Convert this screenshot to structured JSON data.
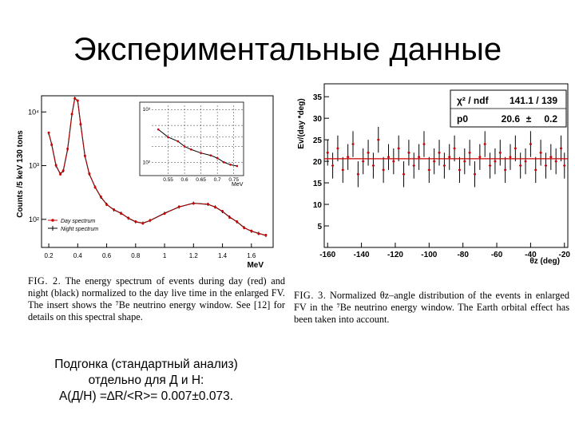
{
  "slide": {
    "title": "Экспериментальные данные",
    "summary_lines": [
      "Подгонка (стандартный анализ)",
      "отдельно для Д и Н:",
      "A(Д/Н) =∆R/<R>= 0.007±0.073."
    ]
  },
  "captions": {
    "fig2": {
      "label": "FIG. 2.",
      "text": "The energy spectrum of events during day (red) and night (black) normalized to the day live time in the enlarged FV. The insert shows the ⁷Be neutrino energy window. See [12] for details on this spectral shape."
    },
    "fig3": {
      "label": "FIG. 3.",
      "text": "Normalized θz–angle distribution of the events in enlarged FV in the ⁷Be neutrino energy window. The Earth orbital effect has been taken into account."
    }
  },
  "chart_data": [
    {
      "type": "line",
      "ylabel": "Counts /5 keV 130 tons",
      "xlabel": "MeV",
      "yscale": "log",
      "ylim": [
        30,
        20000
      ],
      "xlim": [
        0.15,
        1.75
      ],
      "x_ticks": [
        "0.2",
        "0.4",
        "0.6",
        "0.8",
        "1",
        "1.2",
        "1.4",
        "1.6"
      ],
      "y_ticks": [
        "10²",
        "10³",
        "10⁴"
      ],
      "legend": [
        "Day spectrum",
        "Night spectrum"
      ],
      "legend_position": "bottom-left",
      "series": [
        {
          "name": "Night spectrum",
          "color": "#000000",
          "x": [
            0.2,
            0.22,
            0.25,
            0.28,
            0.3,
            0.33,
            0.36,
            0.38,
            0.4,
            0.42,
            0.45,
            0.48,
            0.52,
            0.56,
            0.6,
            0.65,
            0.7,
            0.75,
            0.8,
            0.85,
            0.9,
            1.0,
            1.1,
            1.2,
            1.3,
            1.35,
            1.4,
            1.45,
            1.5,
            1.55,
            1.6,
            1.65,
            1.7
          ],
          "y": [
            4000,
            2500,
            1000,
            700,
            800,
            2000,
            9000,
            18000,
            16000,
            6000,
            1500,
            700,
            400,
            260,
            190,
            150,
            130,
            105,
            90,
            85,
            95,
            130,
            170,
            200,
            190,
            170,
            140,
            110,
            90,
            70,
            60,
            55,
            50
          ]
        },
        {
          "name": "Day spectrum",
          "color": "#cc0000",
          "x": [
            0.2,
            0.22,
            0.25,
            0.28,
            0.3,
            0.33,
            0.36,
            0.38,
            0.4,
            0.42,
            0.45,
            0.48,
            0.52,
            0.56,
            0.6,
            0.65,
            0.7,
            0.75,
            0.8,
            0.85,
            0.9,
            1.0,
            1.1,
            1.2,
            1.3,
            1.35,
            1.4,
            1.45,
            1.5,
            1.55,
            1.6,
            1.65,
            1.7
          ],
          "y": [
            4100,
            2450,
            1020,
            690,
            810,
            2050,
            9100,
            17800,
            16200,
            5900,
            1520,
            710,
            395,
            265,
            188,
            152,
            128,
            106,
            91,
            84,
            96,
            128,
            172,
            198,
            192,
            168,
            142,
            108,
            91,
            69,
            61,
            54,
            51
          ]
        }
      ],
      "inset": {
        "type": "line",
        "xlabel": "MeV",
        "x_ticks": [
          "0.55",
          "0.6",
          "0.65",
          "0.7",
          "0.75"
        ],
        "y_ticks": [
          "10³",
          "10²"
        ],
        "xlim": [
          0.5,
          0.78
        ],
        "yscale": "log",
        "ylim": [
          60,
          1200
        ],
        "x": [
          0.52,
          0.55,
          0.58,
          0.6,
          0.62,
          0.65,
          0.68,
          0.7,
          0.72,
          0.74,
          0.76
        ],
        "y": [
          420,
          300,
          250,
          200,
          175,
          150,
          135,
          120,
          100,
          90,
          85
        ]
      }
    },
    {
      "type": "scatter",
      "ylabel": "Ev/(day *deg)",
      "xlabel": "θz (deg)",
      "xlim": [
        -162,
        -18
      ],
      "ylim": [
        0,
        38
      ],
      "x_ticks": [
        "-160",
        "-140",
        "-120",
        "-100",
        "-80",
        "-60",
        "-40",
        "-20"
      ],
      "y_ticks": [
        "5",
        "10",
        "15",
        "20",
        "25",
        "30",
        "35"
      ],
      "fit": {
        "chi2_label": "χ² / ndf",
        "chi2_value": "141.1 / 139",
        "p0_label": "p0",
        "p0_value": "20.6",
        "p0_pm": "±",
        "p0_error": "0.2",
        "value": 20.6
      },
      "series": [
        {
          "name": "",
          "color": "#000000",
          "x": [
            -160,
            -157,
            -154,
            -151,
            -148,
            -145,
            -142,
            -139,
            -136,
            -133,
            -130,
            -127,
            -124,
            -121,
            -118,
            -115,
            -112,
            -109,
            -106,
            -103,
            -100,
            -97,
            -94,
            -91,
            -88,
            -85,
            -82,
            -79,
            -76,
            -73,
            -70,
            -67,
            -64,
            -61,
            -58,
            -55,
            -52,
            -49,
            -46,
            -43,
            -40,
            -37,
            -34,
            -31,
            -28,
            -25,
            -22,
            -20
          ],
          "y": [
            22,
            19,
            23,
            18,
            21,
            24,
            17,
            20,
            22,
            19,
            25,
            18,
            21,
            20,
            23,
            17,
            22,
            19,
            21,
            24,
            18,
            20,
            22,
            19,
            21,
            23,
            18,
            20,
            22,
            17,
            21,
            24,
            19,
            20,
            22,
            18,
            21,
            23,
            19,
            20,
            24,
            18,
            22,
            19,
            21,
            20,
            23,
            19
          ],
          "err": [
            3,
            3,
            3,
            3,
            3,
            3,
            3,
            3,
            3,
            3,
            3,
            3,
            3,
            3,
            3,
            3,
            3,
            3,
            3,
            3,
            3,
            3,
            3,
            3,
            3,
            3,
            3,
            3,
            3,
            3,
            3,
            3,
            3,
            3,
            3,
            3,
            3,
            3,
            3,
            3,
            3,
            3,
            3,
            3,
            3,
            3,
            3,
            3
          ]
        }
      ]
    }
  ]
}
